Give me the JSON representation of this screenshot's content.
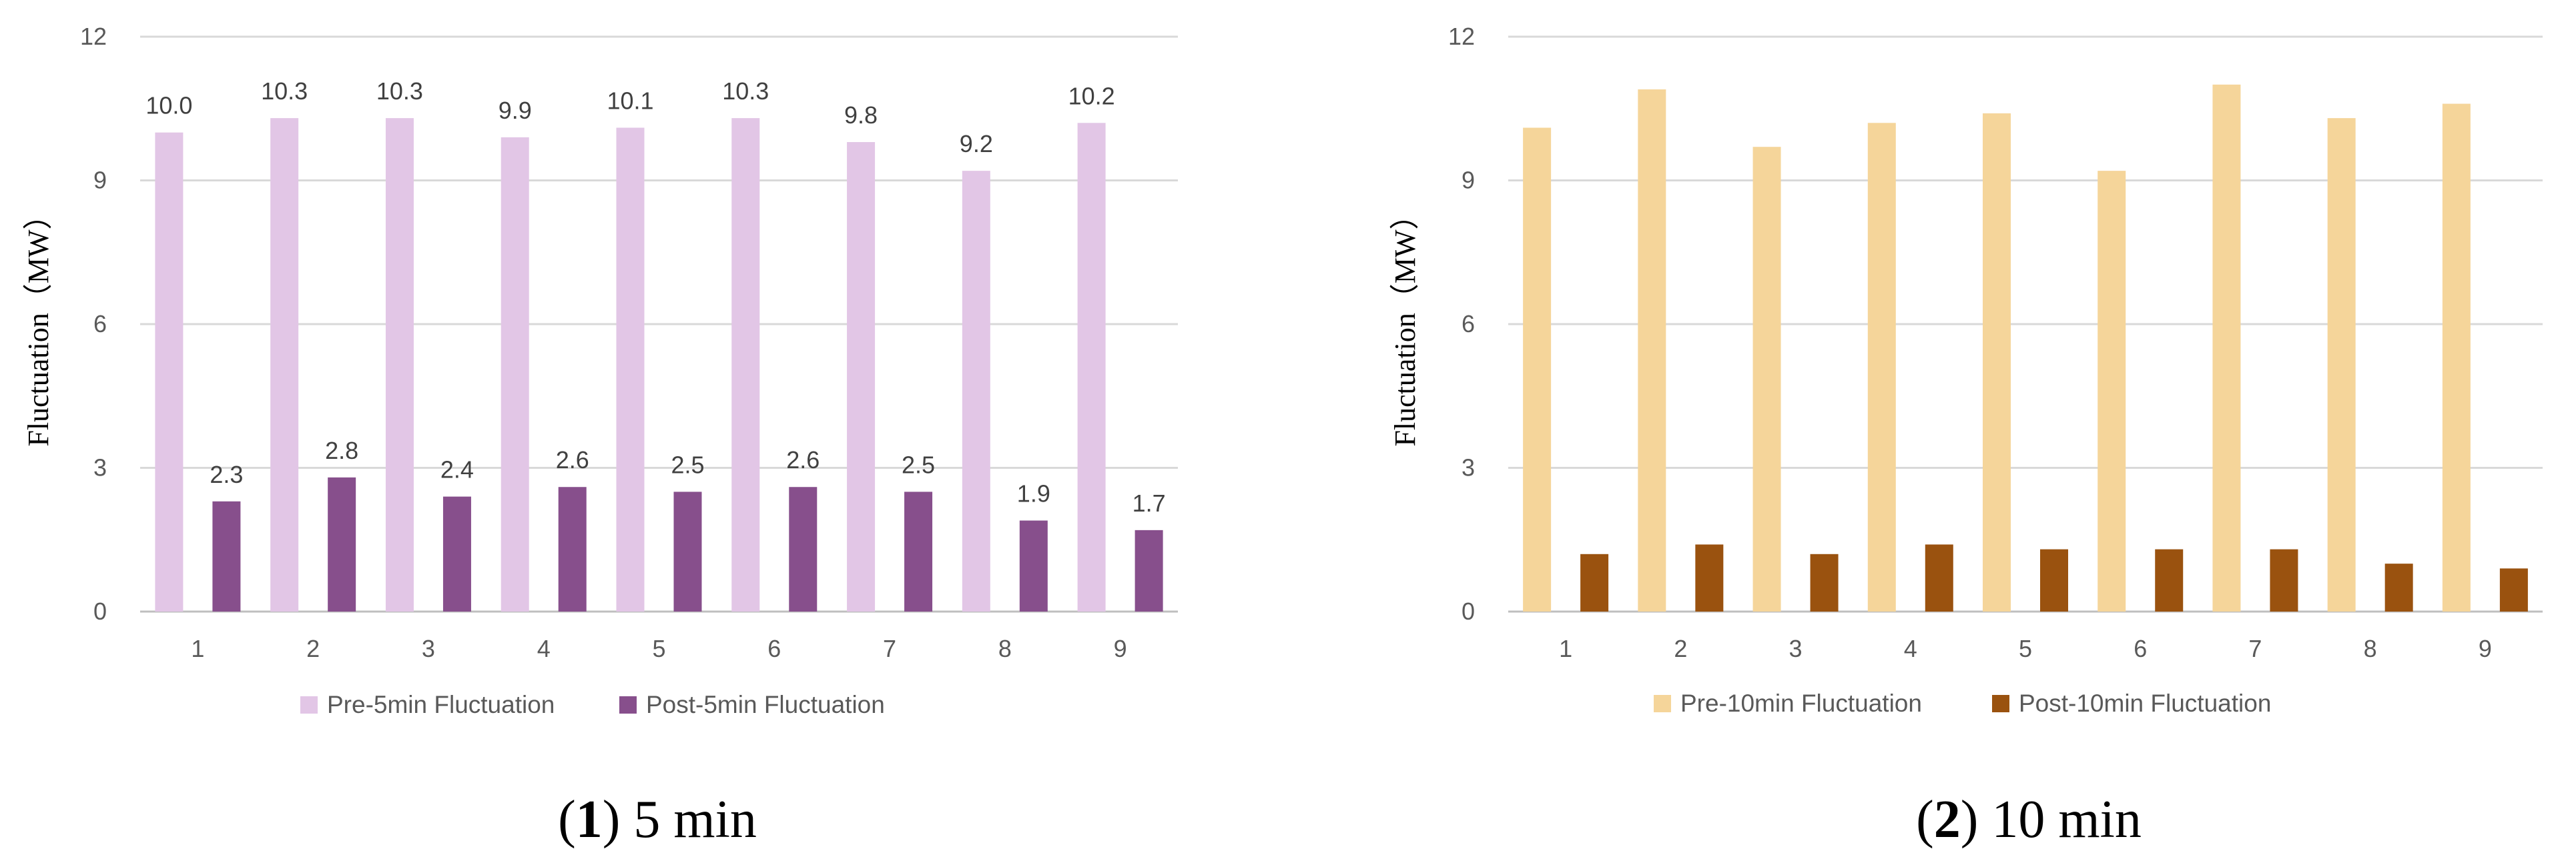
{
  "chart_data": [
    {
      "type": "bar",
      "title": "",
      "xlabel": "",
      "ylabel": "Fluctuation（MW）",
      "ylim": [
        0,
        12
      ],
      "yticks": [
        "0",
        "3",
        "6",
        "9",
        "12"
      ],
      "grid": true,
      "legend_position": "bottom",
      "categories": [
        "1",
        "2",
        "3",
        "4",
        "5",
        "6",
        "7",
        "8",
        "9"
      ],
      "series": [
        {
          "name": "Pre-5min Fluctuation",
          "color": "#e2c6e6",
          "values": [
            10.0,
            10.3,
            10.3,
            9.9,
            10.1,
            10.3,
            9.8,
            9.2,
            10.2
          ],
          "labels": [
            "10.0",
            "10.3",
            "10.3",
            "9.9",
            "10.1",
            "10.3",
            "9.8",
            "9.2",
            "10.2"
          ]
        },
        {
          "name": "Post-5min Fluctuation",
          "color": "#874f8c",
          "values": [
            2.3,
            2.8,
            2.4,
            2.6,
            2.5,
            2.6,
            2.5,
            1.9,
            1.7
          ],
          "labels": [
            "2.3",
            "2.8",
            "2.4",
            "2.6",
            "2.5",
            "2.6",
            "2.5",
            "1.9",
            "1.7"
          ]
        }
      ],
      "caption": {
        "number": "1",
        "open": "(",
        "close": ")",
        "text": " 5 min"
      }
    },
    {
      "type": "bar",
      "title": "",
      "xlabel": "",
      "ylabel": "Fluctuation（MW）",
      "ylim": [
        0,
        12
      ],
      "yticks": [
        "0",
        "3",
        "6",
        "9",
        "12"
      ],
      "grid": true,
      "legend_position": "bottom",
      "categories": [
        "1",
        "2",
        "3",
        "4",
        "5",
        "6",
        "7",
        "8",
        "9"
      ],
      "series": [
        {
          "name": "Pre-10min Fluctuation",
          "color": "#f5d59a",
          "values": [
            10.1,
            10.9,
            9.7,
            10.2,
            10.4,
            9.2,
            11.0,
            10.3,
            10.6
          ]
        },
        {
          "name": "Post-10min Fluctuation",
          "color": "#9a520f",
          "values": [
            1.2,
            1.4,
            1.2,
            1.4,
            1.3,
            1.3,
            1.3,
            1.0,
            0.9
          ]
        }
      ],
      "caption": {
        "number": "2",
        "open": "(",
        "close": ")",
        "text": " 10 min"
      }
    }
  ]
}
